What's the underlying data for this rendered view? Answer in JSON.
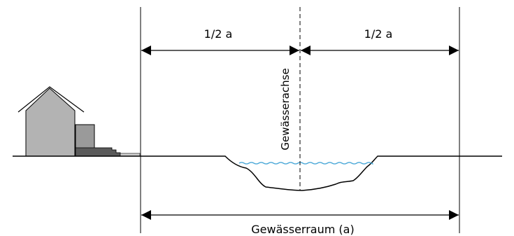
{
  "diagram": {
    "half_left_label": "1/2 a",
    "half_right_label": "1/2 a",
    "axis_label": "Gewässerachse",
    "total_label": "Gewässerraum (a)"
  },
  "colors": {
    "line": "#000000",
    "water": "#4aa8d8",
    "house": "#b3b3b3",
    "house_annex": "#9a9a9a",
    "stairs": "#5a5a5a",
    "background": "#ffffff"
  }
}
